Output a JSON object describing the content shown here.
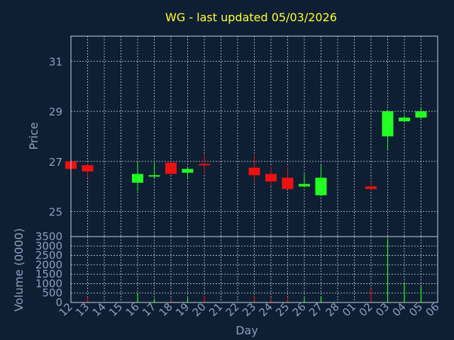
{
  "chart_data": [
    {
      "type": "candlestick",
      "title": "WG -  last updated 05/03/2026",
      "ylabel": "Price",
      "ylim": [
        24,
        32
      ],
      "y_ticks": [
        25,
        27,
        29,
        31
      ],
      "grid": true,
      "colors": {
        "up": "#22ff22",
        "down": "#ee1111"
      },
      "categories": [
        "12",
        "13",
        "14",
        "15",
        "16",
        "17",
        "18",
        "19",
        "20",
        "21",
        "22",
        "23",
        "24",
        "25",
        "26",
        "27",
        "28",
        "01",
        "02",
        "03",
        "04",
        "05",
        "06"
      ],
      "candles": [
        {
          "x": "12",
          "open": 27.0,
          "high": 27.05,
          "low": 26.65,
          "close": 26.7
        },
        {
          "x": "13",
          "open": 26.85,
          "high": 26.9,
          "low": 26.35,
          "close": 26.6
        },
        {
          "x": "16",
          "open": 26.15,
          "high": 27.0,
          "low": 25.8,
          "close": 26.5
        },
        {
          "x": "17",
          "open": 26.4,
          "high": 26.95,
          "low": 26.3,
          "close": 26.45
        },
        {
          "x": "18",
          "open": 26.95,
          "high": 27.0,
          "low": 26.5,
          "close": 26.5
        },
        {
          "x": "19",
          "open": 26.55,
          "high": 26.75,
          "low": 26.3,
          "close": 26.7
        },
        {
          "x": "20",
          "open": 26.9,
          "high": 27.3,
          "low": 26.5,
          "close": 26.85
        },
        {
          "x": "23",
          "open": 26.75,
          "high": 27.25,
          "low": 26.2,
          "close": 26.45
        },
        {
          "x": "24",
          "open": 26.5,
          "high": 26.8,
          "low": 26.0,
          "close": 26.2
        },
        {
          "x": "25",
          "open": 26.35,
          "high": 26.8,
          "low": 25.9,
          "close": 25.9
        },
        {
          "x": "26",
          "open": 26.0,
          "high": 26.5,
          "low": 25.95,
          "close": 26.1
        },
        {
          "x": "27",
          "open": 25.65,
          "high": 26.85,
          "low": 25.65,
          "close": 26.35
        },
        {
          "x": "02",
          "open": 26.0,
          "high": 26.2,
          "low": 25.85,
          "close": 25.9
        },
        {
          "x": "03",
          "open": 28.0,
          "high": 29.0,
          "low": 27.45,
          "close": 29.0
        },
        {
          "x": "04",
          "open": 28.6,
          "high": 28.85,
          "low": 28.55,
          "close": 28.75
        },
        {
          "x": "05",
          "open": 28.75,
          "high": 29.15,
          "low": 28.65,
          "close": 29.0
        }
      ]
    },
    {
      "type": "bar",
      "ylabel": "Volume (0000)",
      "xlabel": "Day",
      "ylim": [
        0,
        3500
      ],
      "y_ticks": [
        0,
        500,
        1000,
        1500,
        2000,
        2500,
        3000,
        3500
      ],
      "grid": true,
      "categories": [
        "12",
        "13",
        "14",
        "15",
        "16",
        "17",
        "18",
        "19",
        "20",
        "21",
        "22",
        "23",
        "24",
        "25",
        "26",
        "27",
        "28",
        "01",
        "02",
        "03",
        "04",
        "05",
        "06"
      ],
      "bars": [
        {
          "x": "12",
          "value": 40,
          "color": "#ee1111"
        },
        {
          "x": "13",
          "value": 300,
          "color": "#ee1111"
        },
        {
          "x": "16",
          "value": 500,
          "color": "#22ff22"
        },
        {
          "x": "17",
          "value": 200,
          "color": "#22ff22"
        },
        {
          "x": "18",
          "value": 150,
          "color": "#ee1111"
        },
        {
          "x": "19",
          "value": 250,
          "color": "#22ff22"
        },
        {
          "x": "20",
          "value": 350,
          "color": "#ee1111"
        },
        {
          "x": "23",
          "value": 350,
          "color": "#ee1111"
        },
        {
          "x": "24",
          "value": 250,
          "color": "#ee1111"
        },
        {
          "x": "25",
          "value": 300,
          "color": "#ee1111"
        },
        {
          "x": "26",
          "value": 250,
          "color": "#22ff22"
        },
        {
          "x": "27",
          "value": 300,
          "color": "#22ff22"
        },
        {
          "x": "02",
          "value": 750,
          "color": "#ee1111"
        },
        {
          "x": "03",
          "value": 3400,
          "color": "#22ff22"
        },
        {
          "x": "04",
          "value": 1050,
          "color": "#22ff22"
        },
        {
          "x": "05",
          "value": 850,
          "color": "#22ff22"
        }
      ]
    }
  ]
}
